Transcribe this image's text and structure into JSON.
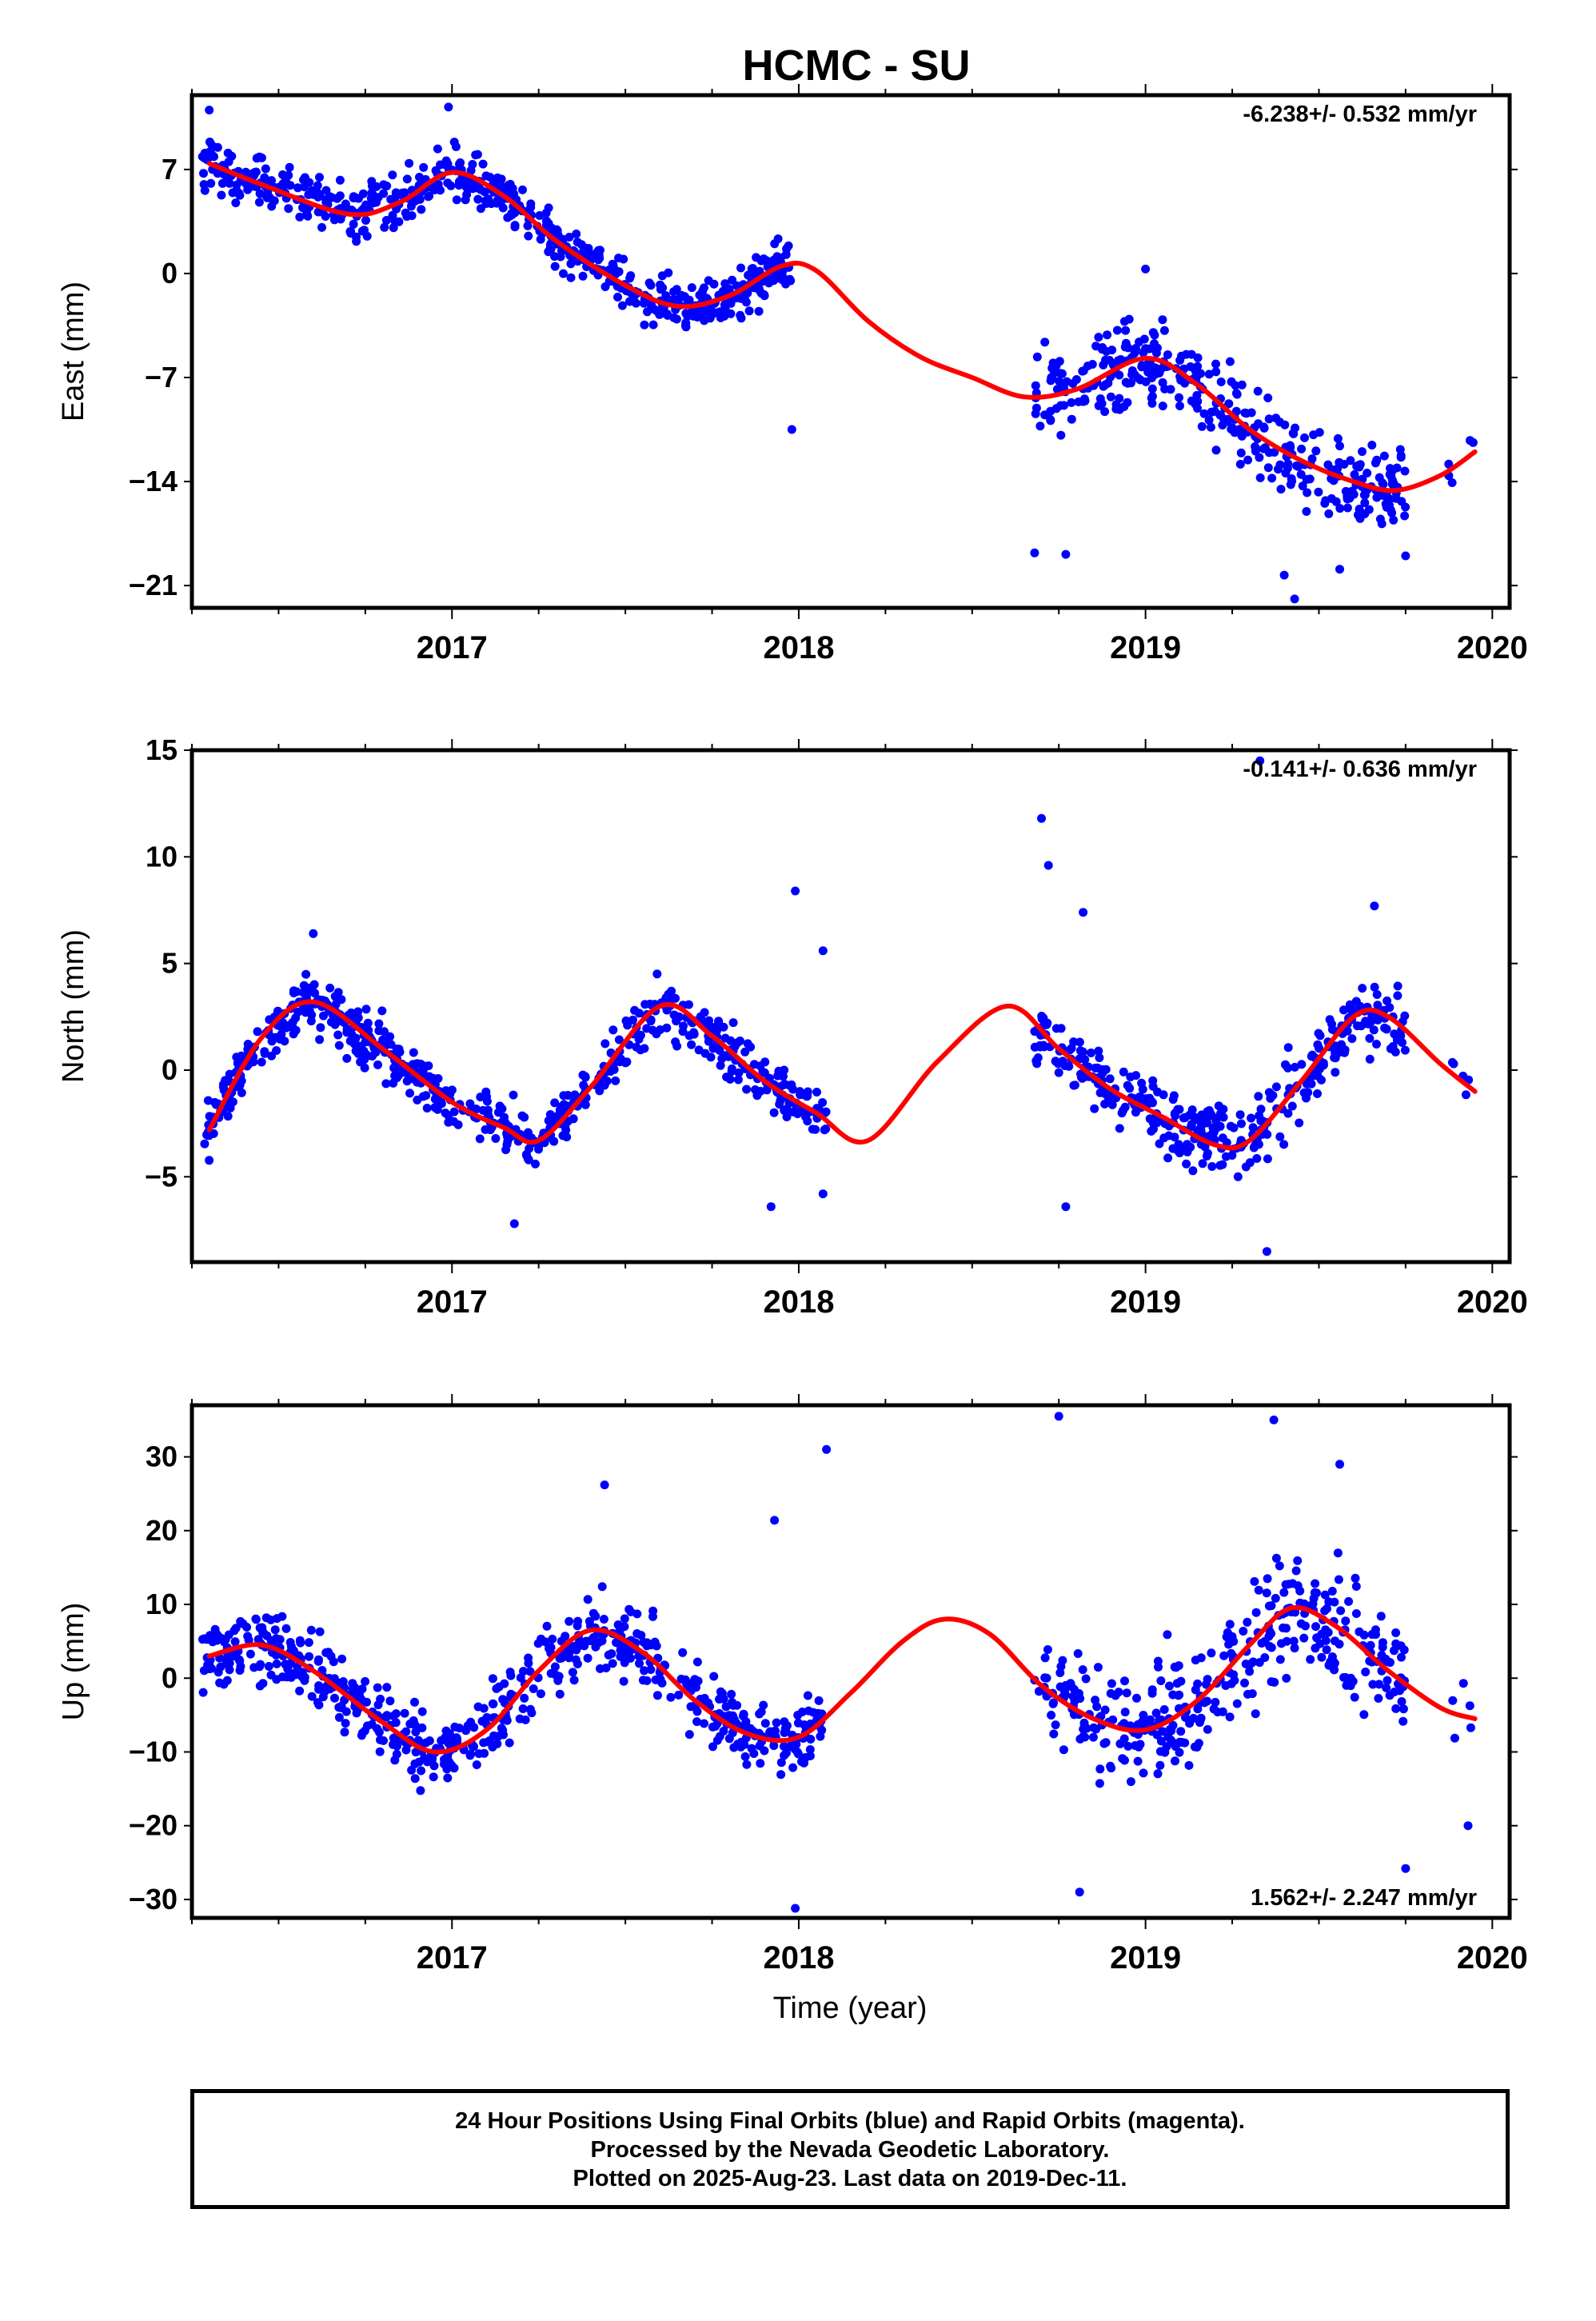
{
  "figure": {
    "title": "HCMC - SU",
    "xlabel": "Time (year)",
    "colors": {
      "points": "#0000ff",
      "fit": "#ff0000",
      "frame": "#000000"
    }
  },
  "chart_data": [
    {
      "type": "scatter",
      "ylabel": "East (mm)",
      "xlim": [
        2016.25,
        2020.05
      ],
      "ylim": [
        -22.5,
        12
      ],
      "yticks": [
        -21,
        -14,
        -7,
        0,
        7
      ],
      "ytick_labels": [
        "−21",
        "−14",
        "−7",
        "0",
        "7"
      ],
      "xticks": [
        2017,
        2018,
        2019,
        2020
      ],
      "xtick_labels": [
        "2017",
        "2018",
        "2019",
        "2020"
      ],
      "grid": false,
      "rate_label": "-6.238+/- 0.532 mm/yr",
      "rate_position": "top-right",
      "fit": {
        "x": [
          2016.3,
          2016.45,
          2016.7,
          2016.85,
          2017.0,
          2017.15,
          2017.3,
          2017.5,
          2017.65,
          2017.8,
          2017.95,
          2018.05,
          2018.2,
          2018.35,
          2018.5,
          2018.65,
          2018.8,
          2019.0,
          2019.15,
          2019.3,
          2019.45,
          2019.6,
          2019.72,
          2019.85,
          2019.95
        ],
        "y": [
          7.4,
          6.0,
          4.0,
          4.8,
          6.8,
          5.2,
          2.2,
          -0.8,
          -2.2,
          -1.5,
          0.5,
          0.2,
          -3.2,
          -5.6,
          -7.0,
          -8.3,
          -7.8,
          -5.7,
          -7.5,
          -10.5,
          -12.6,
          -14.0,
          -14.6,
          -13.6,
          -12.0
        ]
      },
      "segments": [
        {
          "x0": 2016.28,
          "x1": 2017.98,
          "samples": 620,
          "spread": 1.7
        },
        {
          "x0": 2018.68,
          "x1": 2019.75,
          "samples": 360,
          "spread": 2.8
        },
        {
          "x0": 2019.87,
          "x1": 2019.95,
          "samples": 5,
          "spread": 1.5
        }
      ],
      "outliers": [
        [
          2016.3,
          11.0
        ],
        [
          2016.99,
          11.2
        ],
        [
          2017.98,
          -10.5
        ],
        [
          2018.68,
          -18.8
        ],
        [
          2018.77,
          -18.9
        ],
        [
          2019.0,
          0.3
        ],
        [
          2019.4,
          -20.3
        ],
        [
          2019.43,
          -21.9
        ],
        [
          2019.56,
          -19.9
        ],
        [
          2019.75,
          -19.0
        ]
      ]
    },
    {
      "type": "scatter",
      "ylabel": "North (mm)",
      "xlim": [
        2016.25,
        2020.05
      ],
      "ylim": [
        -9,
        15
      ],
      "yticks": [
        -5,
        0,
        5,
        10,
        15
      ],
      "ytick_labels": [
        "−5",
        "0",
        "5",
        "10",
        "15"
      ],
      "xticks": [
        2017,
        2018,
        2019,
        2020
      ],
      "xtick_labels": [
        "2017",
        "2018",
        "2019",
        "2020"
      ],
      "grid": false,
      "rate_label": "-0.141+/- 0.636 mm/yr",
      "rate_position": "top-right",
      "fit": {
        "x": [
          2016.3,
          2016.45,
          2016.6,
          2016.8,
          2017.0,
          2017.15,
          2017.25,
          2017.4,
          2017.6,
          2017.75,
          2017.9,
          2018.05,
          2018.2,
          2018.4,
          2018.6,
          2018.75,
          2018.9,
          2019.05,
          2019.2,
          2019.3,
          2019.45,
          2019.6,
          2019.7,
          2019.85,
          2019.95
        ],
        "y": [
          -2.8,
          1.5,
          3.2,
          1.0,
          -1.5,
          -2.7,
          -3.3,
          -0.8,
          3.0,
          1.6,
          -0.5,
          -2.0,
          -3.3,
          0.4,
          3.0,
          1.0,
          -0.9,
          -2.2,
          -3.5,
          -3.3,
          -0.5,
          2.5,
          2.5,
          0.3,
          -1.0
        ]
      },
      "segments": [
        {
          "x0": 2016.28,
          "x1": 2018.08,
          "samples": 620,
          "spread": 1.2
        },
        {
          "x0": 2018.68,
          "x1": 2019.75,
          "samples": 360,
          "spread": 1.6
        },
        {
          "x0": 2019.87,
          "x1": 2019.95,
          "samples": 5,
          "spread": 1.2
        }
      ],
      "outliers": [
        [
          2016.6,
          6.4
        ],
        [
          2017.18,
          -7.2
        ],
        [
          2017.92,
          -6.4
        ],
        [
          2017.99,
          8.4
        ],
        [
          2018.07,
          -5.8
        ],
        [
          2018.07,
          5.6
        ],
        [
          2018.7,
          11.8
        ],
        [
          2018.72,
          9.6
        ],
        [
          2018.77,
          -6.4
        ],
        [
          2018.82,
          7.4
        ],
        [
          2019.33,
          14.5
        ],
        [
          2019.35,
          -8.5
        ],
        [
          2019.66,
          7.7
        ]
      ]
    },
    {
      "type": "scatter",
      "ylabel": "Up (mm)",
      "xlim": [
        2016.25,
        2020.05
      ],
      "ylim": [
        -32.5,
        37
      ],
      "yticks": [
        -30,
        -20,
        -10,
        0,
        10,
        20,
        30
      ],
      "ytick_labels": [
        "−30",
        "−20",
        "−10",
        "0",
        "10",
        "20",
        "30"
      ],
      "xticks": [
        2017,
        2018,
        2019,
        2020
      ],
      "xtick_labels": [
        "2017",
        "2018",
        "2019",
        "2020"
      ],
      "grid": false,
      "rate_label": "1.562+/- 2.247 mm/yr",
      "rate_position": "bottom-right",
      "fit": {
        "x": [
          2016.3,
          2016.45,
          2016.6,
          2016.8,
          2016.95,
          2017.1,
          2017.25,
          2017.4,
          2017.55,
          2017.7,
          2017.85,
          2018.0,
          2018.15,
          2018.3,
          2018.42,
          2018.55,
          2018.7,
          2018.85,
          2019.0,
          2019.15,
          2019.3,
          2019.42,
          2019.55,
          2019.7,
          2019.85,
          2019.95
        ],
        "y": [
          3.0,
          4.5,
          1.0,
          -6.0,
          -10.0,
          -7.0,
          1.0,
          6.5,
          3.5,
          -3.0,
          -7.5,
          -8.0,
          -2.0,
          5.0,
          8.0,
          6.0,
          -1.0,
          -5.5,
          -7.0,
          -3.0,
          4.5,
          9.5,
          7.0,
          1.0,
          -4.0,
          -5.5
        ]
      },
      "segments": [
        {
          "x0": 2016.28,
          "x1": 2018.08,
          "samples": 620,
          "spread": 4.8
        },
        {
          "x0": 2018.68,
          "x1": 2019.75,
          "samples": 360,
          "spread": 7.5
        },
        {
          "x0": 2019.87,
          "x1": 2019.95,
          "samples": 5,
          "spread": 4.0
        }
      ],
      "outliers": [
        [
          2017.44,
          26.2
        ],
        [
          2017.93,
          21.4
        ],
        [
          2017.99,
          -31.2
        ],
        [
          2018.08,
          31.0
        ],
        [
          2018.75,
          35.5
        ],
        [
          2018.81,
          -29.0
        ],
        [
          2019.37,
          35.0
        ],
        [
          2019.56,
          29.0
        ],
        [
          2019.75,
          -25.8
        ],
        [
          2019.93,
          -20.0
        ]
      ]
    }
  ],
  "footer": {
    "line1": "24 Hour Positions Using Final Orbits (blue) and Rapid Orbits (magenta).",
    "line2": "Processed by the Nevada Geodetic Laboratory.",
    "line3": "Plotted on 2025-Aug-23. Last data on 2019-Dec-11."
  }
}
